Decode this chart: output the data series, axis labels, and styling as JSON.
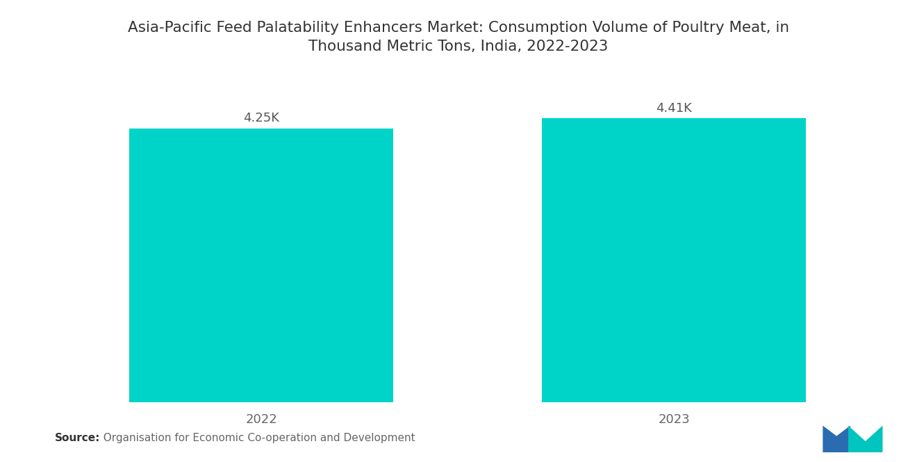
{
  "title_line1": "Asia-Pacific Feed Palatability Enhancers Market: Consumption Volume of Poultry Meat, in",
  "title_line2": "Thousand Metric Tons, India, 2022-2023",
  "categories": [
    "2022",
    "2023"
  ],
  "values": [
    4250,
    4410
  ],
  "labels": [
    "4.25K",
    "4.41K"
  ],
  "bar_color": "#00D4C8",
  "background_color": "#ffffff",
  "title_fontsize": 15.5,
  "label_fontsize": 13,
  "tick_fontsize": 13,
  "source_bold": "Source:",
  "source_rest": "  Organisation for Economic Co-operation and Development",
  "ylim": [
    0,
    5200
  ],
  "bar_width": 0.32,
  "x_positions": [
    0.25,
    0.75
  ]
}
